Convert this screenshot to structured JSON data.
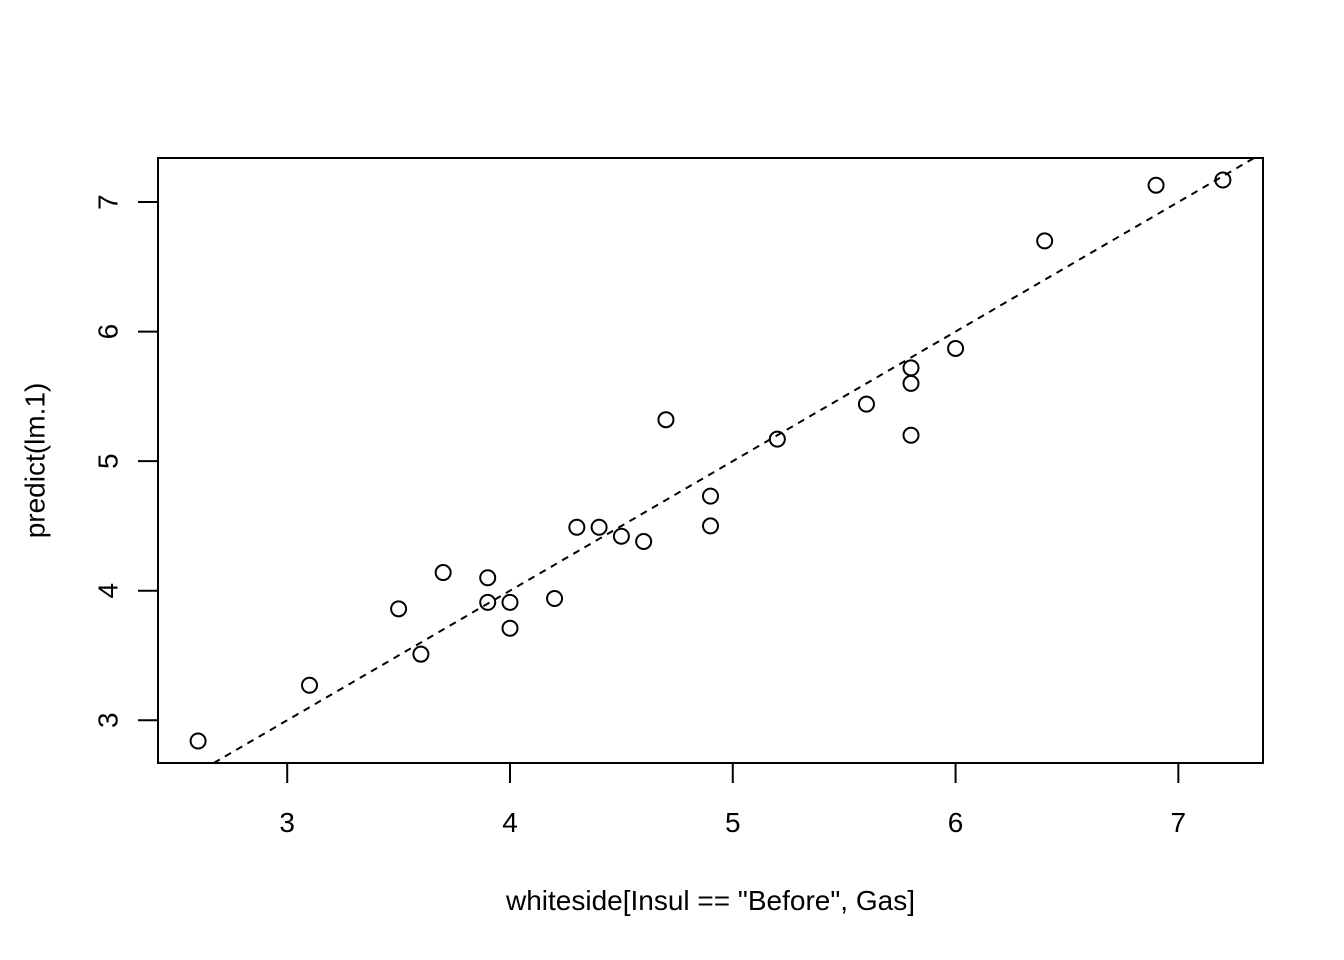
{
  "chart_data": {
    "type": "scatter",
    "title": "",
    "xlabel": "whiteside[Insul == \"Before\", Gas]",
    "ylabel": "predict(lm.1)",
    "xlim": [
      2.42,
      7.38
    ],
    "ylim": [
      2.67,
      7.34
    ],
    "xticks": [
      3,
      4,
      5,
      6,
      7
    ],
    "yticks": [
      3,
      4,
      5,
      6,
      7
    ],
    "grid": false,
    "marker": "open-circle",
    "reference_line": {
      "slope": 1,
      "intercept": 0,
      "style": "dashed"
    },
    "points": [
      {
        "x": 2.6,
        "y": 2.84
      },
      {
        "x": 3.1,
        "y": 3.27
      },
      {
        "x": 3.5,
        "y": 3.86
      },
      {
        "x": 3.6,
        "y": 3.51
      },
      {
        "x": 3.7,
        "y": 4.14
      },
      {
        "x": 3.9,
        "y": 4.1
      },
      {
        "x": 3.9,
        "y": 3.91
      },
      {
        "x": 4.0,
        "y": 3.91
      },
      {
        "x": 4.0,
        "y": 3.71
      },
      {
        "x": 4.2,
        "y": 3.94
      },
      {
        "x": 4.3,
        "y": 4.49
      },
      {
        "x": 4.4,
        "y": 4.49
      },
      {
        "x": 4.5,
        "y": 4.42
      },
      {
        "x": 4.6,
        "y": 4.38
      },
      {
        "x": 4.7,
        "y": 5.32
      },
      {
        "x": 4.9,
        "y": 4.73
      },
      {
        "x": 4.9,
        "y": 4.5
      },
      {
        "x": 5.2,
        "y": 5.17
      },
      {
        "x": 5.6,
        "y": 5.44
      },
      {
        "x": 5.8,
        "y": 5.72
      },
      {
        "x": 5.8,
        "y": 5.6
      },
      {
        "x": 5.8,
        "y": 5.2
      },
      {
        "x": 6.0,
        "y": 5.87
      },
      {
        "x": 6.4,
        "y": 6.7
      },
      {
        "x": 6.9,
        "y": 7.13
      },
      {
        "x": 7.2,
        "y": 7.17
      }
    ]
  }
}
